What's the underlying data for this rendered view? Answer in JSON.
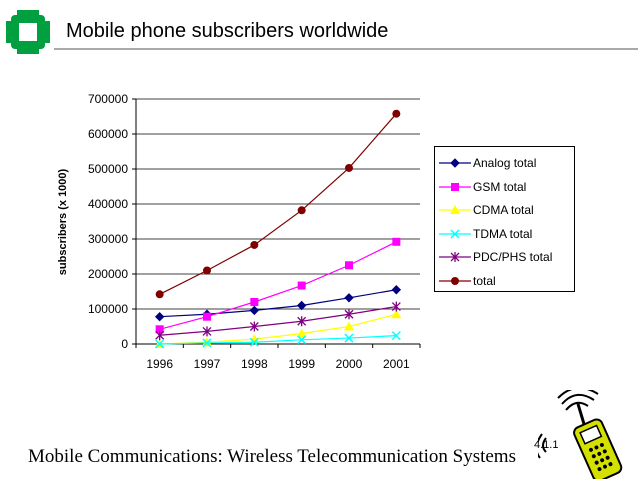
{
  "slide": {
    "title": "Mobile phone subscribers worldwide",
    "footer_text": "Mobile Communications: Wireless Telecommunication Systems",
    "page_number": "4.1.1"
  },
  "colors": {
    "logo_green": "#00a040",
    "rule_gray": "#a9a9a9",
    "phone_yellow": "#d4e000"
  },
  "icons": {
    "logo": "university-logo-icon",
    "phone": "mobile-phone-clipart-icon"
  },
  "chart_data": {
    "type": "line",
    "title": "",
    "xlabel": "",
    "ylabel": "subscribers (x 1000)",
    "categories": [
      "1996",
      "1997",
      "1998",
      "1999",
      "2000",
      "2001"
    ],
    "ylim": [
      0,
      700000
    ],
    "yticks": [
      "0",
      "100000",
      "200000",
      "300000",
      "400000",
      "500000",
      "600000",
      "700000"
    ],
    "grid": "horizontal",
    "legend_position": "right",
    "series": [
      {
        "name": "Analog total",
        "values": [
          78000,
          85000,
          96000,
          110000,
          132000,
          155000
        ],
        "color": "#000080",
        "marker": "diamond"
      },
      {
        "name": "GSM total",
        "values": [
          42000,
          78000,
          120000,
          167000,
          225000,
          292000
        ],
        "color": "#ff00ff",
        "marker": "square"
      },
      {
        "name": "CDMA total",
        "values": [
          0,
          5000,
          14000,
          30000,
          50000,
          85000
        ],
        "color": "#ffff00",
        "marker": "triangle"
      },
      {
        "name": "TDMA total",
        "values": [
          0,
          3000,
          5000,
          12000,
          17000,
          24000
        ],
        "color": "#00ffff",
        "marker": "x"
      },
      {
        "name": "PDC/PHS total",
        "values": [
          25000,
          36000,
          50000,
          65000,
          85000,
          107000
        ],
        "color": "#800080",
        "marker": "star"
      },
      {
        "name": "total",
        "values": [
          142000,
          210000,
          283000,
          382000,
          503000,
          658000
        ],
        "color": "#800000",
        "marker": "circle"
      }
    ]
  }
}
